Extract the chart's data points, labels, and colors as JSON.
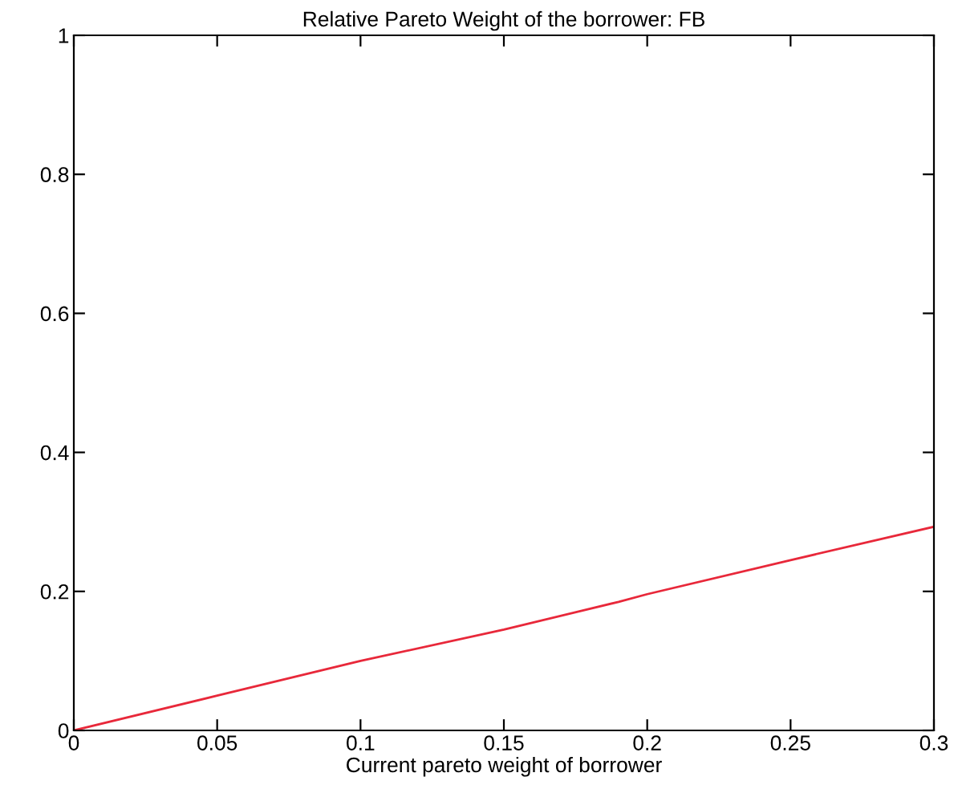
{
  "chart_data": {
    "type": "line",
    "title": "Relative Pareto Weight of the borrower: FB",
    "xlabel": "Current pareto weight of borrower",
    "x": [
      0,
      0.05,
      0.1,
      0.15,
      0.19,
      0.2,
      0.25,
      0.3
    ],
    "series": [
      {
        "color": "#e8283a",
        "values": [
          0,
          0.05,
          0.1,
          0.145,
          0.185,
          0.196,
          0.245,
          0.293
        ]
      }
    ],
    "xlim": [
      0,
      0.3
    ],
    "xticks": [
      0,
      0.05,
      0.1,
      0.15,
      0.2,
      0.25,
      0.3
    ],
    "ylim": [
      0,
      1
    ],
    "yticks": [
      0,
      0.2,
      0.4,
      0.6,
      0.8,
      1
    ],
    "grid": false,
    "legend": false
  }
}
